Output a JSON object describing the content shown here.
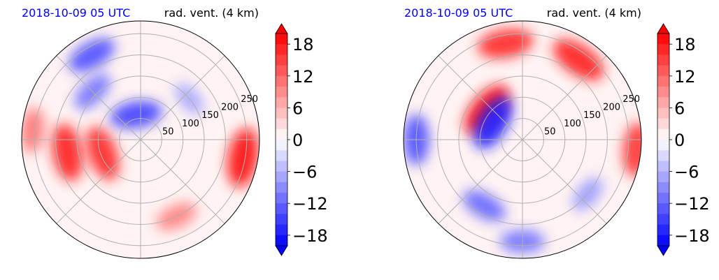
{
  "chart_data": [
    {
      "type": "heatmap",
      "projection": "polar",
      "title_left": "2018-10-09 05 UTC",
      "title_right": "rad. vent. (4 km)",
      "title_left_color": "#0000ff",
      "radial_ticks": [
        50,
        100,
        150,
        200,
        250
      ],
      "radial_max": 280,
      "grid": true,
      "colormap": "bwr",
      "colorbar": {
        "ticks": [
          18,
          12,
          6,
          0,
          -6,
          -12,
          -18
        ],
        "vmin": -20,
        "vmax": 20,
        "extend": "both"
      },
      "features": [
        {
          "sign": "positive",
          "angle_deg": 200,
          "radius": 95,
          "intensity": 0.85
        },
        {
          "sign": "positive",
          "angle_deg": 190,
          "radius": 175,
          "intensity": 0.9
        },
        {
          "sign": "positive",
          "angle_deg": 175,
          "radius": 255,
          "intensity": 0.55
        },
        {
          "sign": "positive",
          "angle_deg": 350,
          "radius": 245,
          "intensity": 0.95
        },
        {
          "sign": "positive",
          "angle_deg": 295,
          "radius": 200,
          "intensity": 0.5
        },
        {
          "sign": "negative",
          "angle_deg": 120,
          "radius": 230,
          "intensity": 0.7
        },
        {
          "sign": "negative",
          "angle_deg": 135,
          "radius": 160,
          "intensity": 0.55
        },
        {
          "sign": "negative",
          "angle_deg": 100,
          "radius": 60,
          "intensity": 0.75
        },
        {
          "sign": "negative",
          "angle_deg": 40,
          "radius": 150,
          "intensity": 0.35
        }
      ]
    },
    {
      "type": "heatmap",
      "projection": "polar",
      "title_left": "2018-10-09 05 UTC",
      "title_right": "rad. vent. (4 km)",
      "title_left_color": "#0000ff",
      "radial_ticks": [
        50,
        100,
        150,
        200,
        250
      ],
      "radial_max": 280,
      "grid": true,
      "colormap": "bwr",
      "colorbar": {
        "ticks": [
          18,
          12,
          6,
          0,
          -6,
          -12,
          -18
        ],
        "vmin": -20,
        "vmax": 20,
        "extend": "both"
      },
      "features": [
        {
          "sign": "positive",
          "angle_deg": 140,
          "radius": 110,
          "intensity": 0.95
        },
        {
          "sign": "positive",
          "angle_deg": 55,
          "radius": 230,
          "intensity": 0.9
        },
        {
          "sign": "positive",
          "angle_deg": 100,
          "radius": 230,
          "intensity": 0.85
        },
        {
          "sign": "positive",
          "angle_deg": 355,
          "radius": 270,
          "intensity": 0.8
        },
        {
          "sign": "negative",
          "angle_deg": 150,
          "radius": 80,
          "intensity": 0.9
        },
        {
          "sign": "negative",
          "angle_deg": 180,
          "radius": 250,
          "intensity": 0.7
        },
        {
          "sign": "negative",
          "angle_deg": 240,
          "radius": 180,
          "intensity": 0.6
        },
        {
          "sign": "negative",
          "angle_deg": 270,
          "radius": 240,
          "intensity": 0.55
        },
        {
          "sign": "negative",
          "angle_deg": 320,
          "radius": 200,
          "intensity": 0.4
        }
      ]
    }
  ]
}
